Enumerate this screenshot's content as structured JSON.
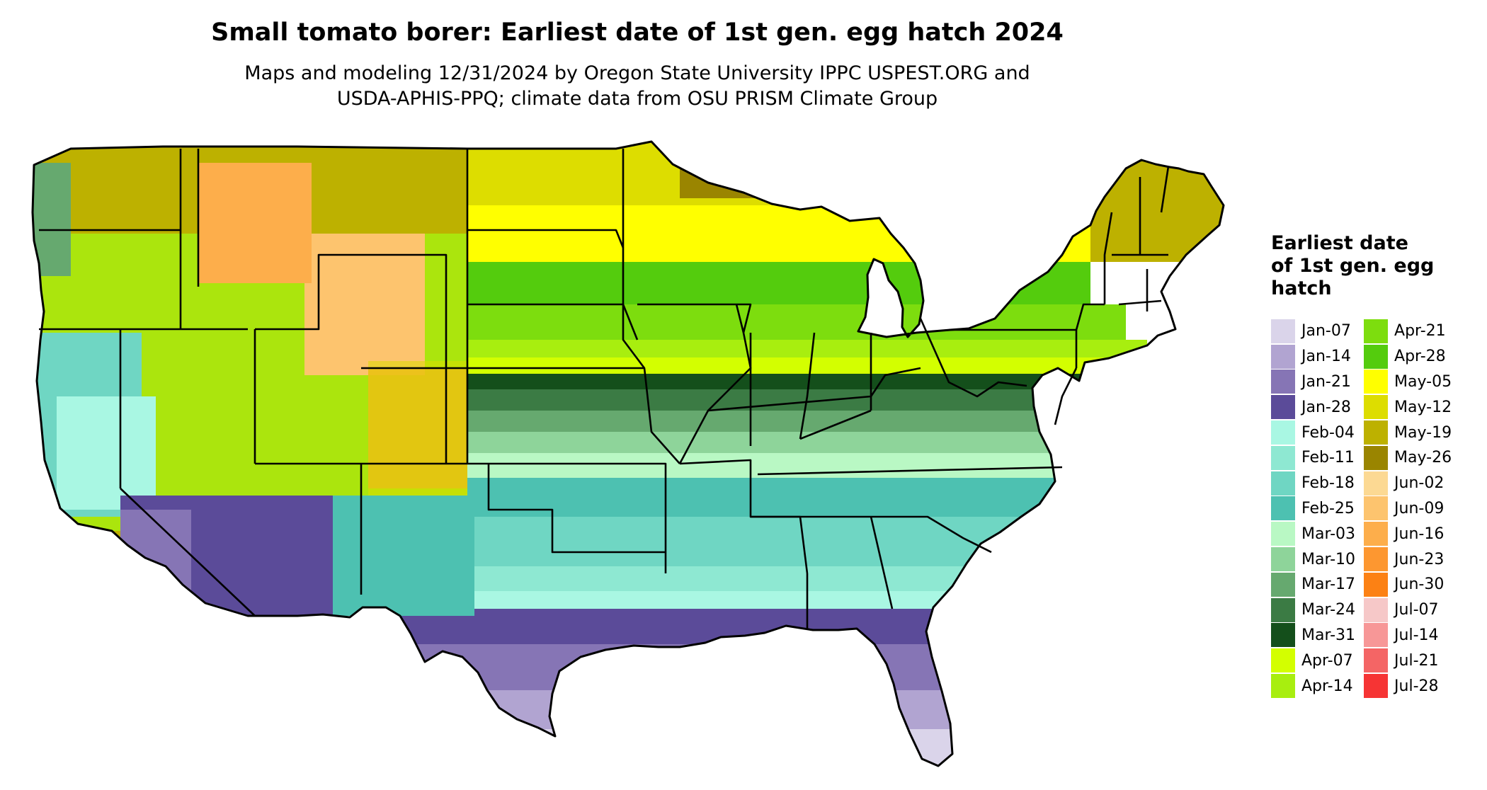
{
  "title": "Small tomato borer: Earliest date of 1st gen. egg hatch 2024",
  "subtitle_lines": [
    "Maps and modeling 12/31/2024 by Oregon State University IPPC USPEST.ORG and",
    "USDA-APHIS-PPQ; climate data from OSU PRISM Climate Group"
  ],
  "legend": {
    "title": "Earliest date\nof 1st gen. egg\nhatch",
    "items": [
      {
        "label": "Jan-07",
        "color": "#dad4ea"
      },
      {
        "label": "Jan-14",
        "color": "#b1a4d1"
      },
      {
        "label": "Jan-21",
        "color": "#8675b5"
      },
      {
        "label": "Jan-28",
        "color": "#5b4b99"
      },
      {
        "label": "Feb-04",
        "color": "#a9f7e3"
      },
      {
        "label": "Feb-11",
        "color": "#8ee8d2"
      },
      {
        "label": "Feb-18",
        "color": "#6fd6c3"
      },
      {
        "label": "Feb-25",
        "color": "#4dc1b1"
      },
      {
        "label": "Mar-03",
        "color": "#b9f8c4"
      },
      {
        "label": "Mar-10",
        "color": "#8ed49a"
      },
      {
        "label": "Mar-17",
        "color": "#66a96f"
      },
      {
        "label": "Mar-24",
        "color": "#3b7b44"
      },
      {
        "label": "Mar-31",
        "color": "#144f1b"
      },
      {
        "label": "Apr-07",
        "color": "#d3ff00"
      },
      {
        "label": "Apr-14",
        "color": "#a8ee0f"
      },
      {
        "label": "Apr-21",
        "color": "#7ddd0e"
      },
      {
        "label": "Apr-28",
        "color": "#54cc0d"
      },
      {
        "label": "May-05",
        "color": "#ffff00"
      },
      {
        "label": "May-12",
        "color": "#dddd00"
      },
      {
        "label": "May-19",
        "color": "#bdb100"
      },
      {
        "label": "May-26",
        "color": "#9a8500"
      },
      {
        "label": "Jun-02",
        "color": "#fcd993"
      },
      {
        "label": "Jun-09",
        "color": "#fdc46e"
      },
      {
        "label": "Jun-16",
        "color": "#fdae4b"
      },
      {
        "label": "Jun-23",
        "color": "#fd9730"
      },
      {
        "label": "Jun-30",
        "color": "#fc8114"
      },
      {
        "label": "Jul-07",
        "color": "#f6c8c8"
      },
      {
        "label": "Jul-14",
        "color": "#f79797"
      },
      {
        "label": "Jul-21",
        "color": "#f46565"
      },
      {
        "label": "Jul-28",
        "color": "#f63434"
      }
    ]
  }
}
